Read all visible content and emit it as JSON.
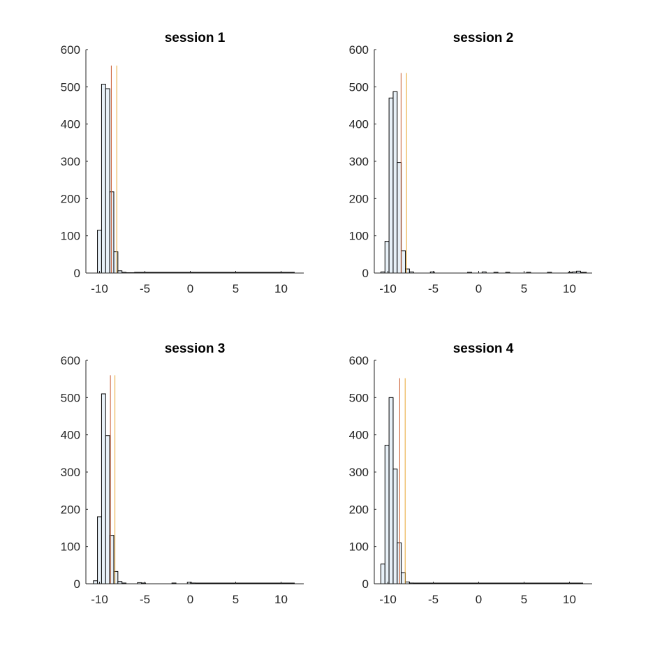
{
  "colors": {
    "bar_fill": "#e8f1f8",
    "bar_edge": "#000000",
    "line_1": "#c8562a",
    "line_2": "#e8a630",
    "axis": "#262626"
  },
  "chart_data": [
    {
      "type": "bar",
      "title": "session 1",
      "xlim": [
        -11.5,
        12.5
      ],
      "ylim": [
        0,
        600
      ],
      "xticks": [
        -10,
        -5,
        0,
        5,
        10
      ],
      "yticks": [
        0,
        100,
        200,
        300,
        400,
        500,
        600
      ],
      "bin_width": 0.45,
      "bins": [
        {
          "x": -10.0,
          "y": 115
        },
        {
          "x": -9.55,
          "y": 507
        },
        {
          "x": -9.1,
          "y": 495
        },
        {
          "x": -8.65,
          "y": 218
        },
        {
          "x": -8.2,
          "y": 57
        },
        {
          "x": -7.75,
          "y": 6
        },
        {
          "x": -7.3,
          "y": 2
        },
        {
          "x": -6.85,
          "y": 1
        },
        {
          "x": -6.4,
          "y": 1
        }
      ],
      "baseline_to": 11.5,
      "vlines": [
        -8.7,
        -8.1
      ],
      "vline_top": 557,
      "grid": false
    },
    {
      "type": "bar",
      "title": "session 2",
      "xlim": [
        -11.5,
        12.5
      ],
      "ylim": [
        0,
        600
      ],
      "xticks": [
        -10,
        -5,
        0,
        5,
        10
      ],
      "yticks": [
        0,
        100,
        200,
        300,
        400,
        500,
        600
      ],
      "bin_width": 0.45,
      "bins": [
        {
          "x": -10.55,
          "y": 3
        },
        {
          "x": -10.1,
          "y": 85
        },
        {
          "x": -9.65,
          "y": 470
        },
        {
          "x": -9.2,
          "y": 487
        },
        {
          "x": -8.75,
          "y": 297
        },
        {
          "x": -8.3,
          "y": 60
        },
        {
          "x": -7.85,
          "y": 11
        },
        {
          "x": -7.4,
          "y": 3
        },
        {
          "x": -5.1,
          "y": 3
        },
        {
          "x": -1.0,
          "y": 2
        },
        {
          "x": 0.6,
          "y": 3
        },
        {
          "x": 1.9,
          "y": 2
        },
        {
          "x": 3.2,
          "y": 2
        },
        {
          "x": 5.5,
          "y": 2
        },
        {
          "x": 7.8,
          "y": 2
        },
        {
          "x": 10.1,
          "y": 2
        },
        {
          "x": 10.55,
          "y": 3
        },
        {
          "x": 11.0,
          "y": 5
        }
      ],
      "baseline_to": 11.9,
      "vlines": [
        -8.55,
        -7.95
      ],
      "vline_top": 537,
      "grid": false
    },
    {
      "type": "bar",
      "title": "session 3",
      "xlim": [
        -11.5,
        12.5
      ],
      "ylim": [
        0,
        600
      ],
      "xticks": [
        -10,
        -5,
        0,
        5,
        10
      ],
      "yticks": [
        0,
        100,
        200,
        300,
        400,
        500,
        600
      ],
      "bin_width": 0.45,
      "bins": [
        {
          "x": -10.45,
          "y": 8
        },
        {
          "x": -10.0,
          "y": 180
        },
        {
          "x": -9.55,
          "y": 510
        },
        {
          "x": -9.1,
          "y": 398
        },
        {
          "x": -8.65,
          "y": 130
        },
        {
          "x": -8.2,
          "y": 33
        },
        {
          "x": -7.75,
          "y": 6
        },
        {
          "x": -7.3,
          "y": 2
        },
        {
          "x": -5.6,
          "y": 3
        },
        {
          "x": -5.15,
          "y": 2
        },
        {
          "x": -1.8,
          "y": 2
        },
        {
          "x": -0.1,
          "y": 4
        },
        {
          "x": 0.35,
          "y": 2
        }
      ],
      "baseline_to": 11.5,
      "vlines": [
        -8.8,
        -8.3
      ],
      "vline_top": 560,
      "grid": false
    },
    {
      "type": "bar",
      "title": "session 4",
      "xlim": [
        -11.5,
        12.5
      ],
      "ylim": [
        0,
        600
      ],
      "xticks": [
        -10,
        -5,
        0,
        5,
        10
      ],
      "yticks": [
        0,
        100,
        200,
        300,
        400,
        500,
        600
      ],
      "bin_width": 0.45,
      "bins": [
        {
          "x": -10.55,
          "y": 53
        },
        {
          "x": -10.1,
          "y": 372
        },
        {
          "x": -9.65,
          "y": 500
        },
        {
          "x": -9.2,
          "y": 308
        },
        {
          "x": -8.75,
          "y": 110
        },
        {
          "x": -8.3,
          "y": 30
        },
        {
          "x": -7.85,
          "y": 5
        },
        {
          "x": -7.4,
          "y": 2
        }
      ],
      "baseline_to": 11.5,
      "vlines": [
        -8.7,
        -8.1
      ],
      "vline_top": 552,
      "grid": false
    }
  ]
}
